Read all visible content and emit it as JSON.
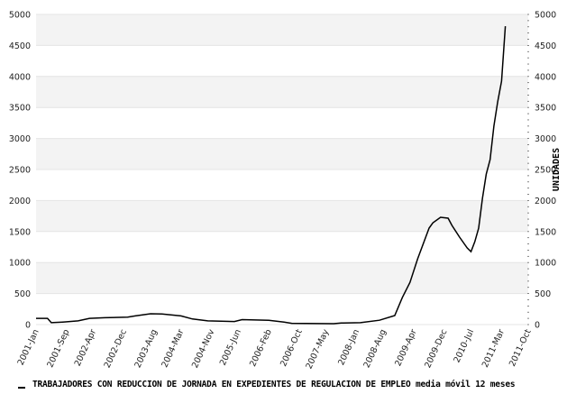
{
  "chart_data": {
    "type": "line",
    "title": "",
    "xlabel": "",
    "ylabel": "UNIDADES",
    "ylim": [
      0,
      5000
    ],
    "yticks": [
      0,
      500,
      1000,
      1500,
      2000,
      2500,
      3000,
      3500,
      4000,
      4500,
      5000
    ],
    "xlim": [
      "2001-01",
      "2011-10"
    ],
    "xtick_labels": [
      "2001-Jan",
      "2001-Sep",
      "2002-Apr",
      "2002-Dec",
      "2003-Aug",
      "2004-Mar",
      "2004-Nov",
      "2005-Jun",
      "2006-Feb",
      "2006-Oct",
      "2007-May",
      "2008-Jan",
      "2008-Aug",
      "2009-Apr",
      "2009-Dec",
      "2010-Jul",
      "2011-Mar",
      "2011-Oct"
    ],
    "xtick_dates": [
      "2001-01",
      "2001-09",
      "2002-04",
      "2002-12",
      "2003-08",
      "2004-03",
      "2004-11",
      "2005-06",
      "2006-02",
      "2006-10",
      "2007-05",
      "2008-01",
      "2008-08",
      "2009-04",
      "2009-12",
      "2010-07",
      "2011-03",
      "2011-10"
    ],
    "grid": "alternating horizontal bands",
    "band_color": "#f3f3f3",
    "line_color": "#000000",
    "legend_position": "bottom-left",
    "series": [
      {
        "name": "TRABAJADORES CON REDUCCION DE JORNADA EN EXPEDIENTES DE REGULACION DE EMPLEO media móvil 12 meses",
        "x": [
          "2001-01",
          "2001-04",
          "2001-05",
          "2001-08",
          "2001-12",
          "2002-03",
          "2002-07",
          "2003-01",
          "2003-03",
          "2003-07",
          "2003-10",
          "2004-03",
          "2004-06",
          "2004-10",
          "2005-05",
          "2005-07",
          "2006-02",
          "2006-06",
          "2006-08",
          "2007-07",
          "2007-09",
          "2008-02",
          "2008-07",
          "2008-11",
          "2009-01",
          "2009-03",
          "2009-05",
          "2009-08",
          "2009-09",
          "2009-11",
          "2010-01",
          "2010-02",
          "2010-04",
          "2010-06",
          "2010-07",
          "2010-08",
          "2010-09",
          "2010-10",
          "2010-11",
          "2010-12",
          "2011-01",
          "2011-02",
          "2011-03",
          "2011-04"
        ],
        "values": [
          100,
          100,
          30,
          40,
          60,
          100,
          110,
          120,
          140,
          175,
          170,
          140,
          90,
          60,
          50,
          80,
          70,
          40,
          20,
          15,
          25,
          30,
          70,
          145,
          435,
          680,
          1060,
          1555,
          1640,
          1730,
          1715,
          1600,
          1410,
          1235,
          1175,
          1335,
          1555,
          2035,
          2425,
          2660,
          3200,
          3590,
          3925,
          4810
        ]
      }
    ]
  }
}
